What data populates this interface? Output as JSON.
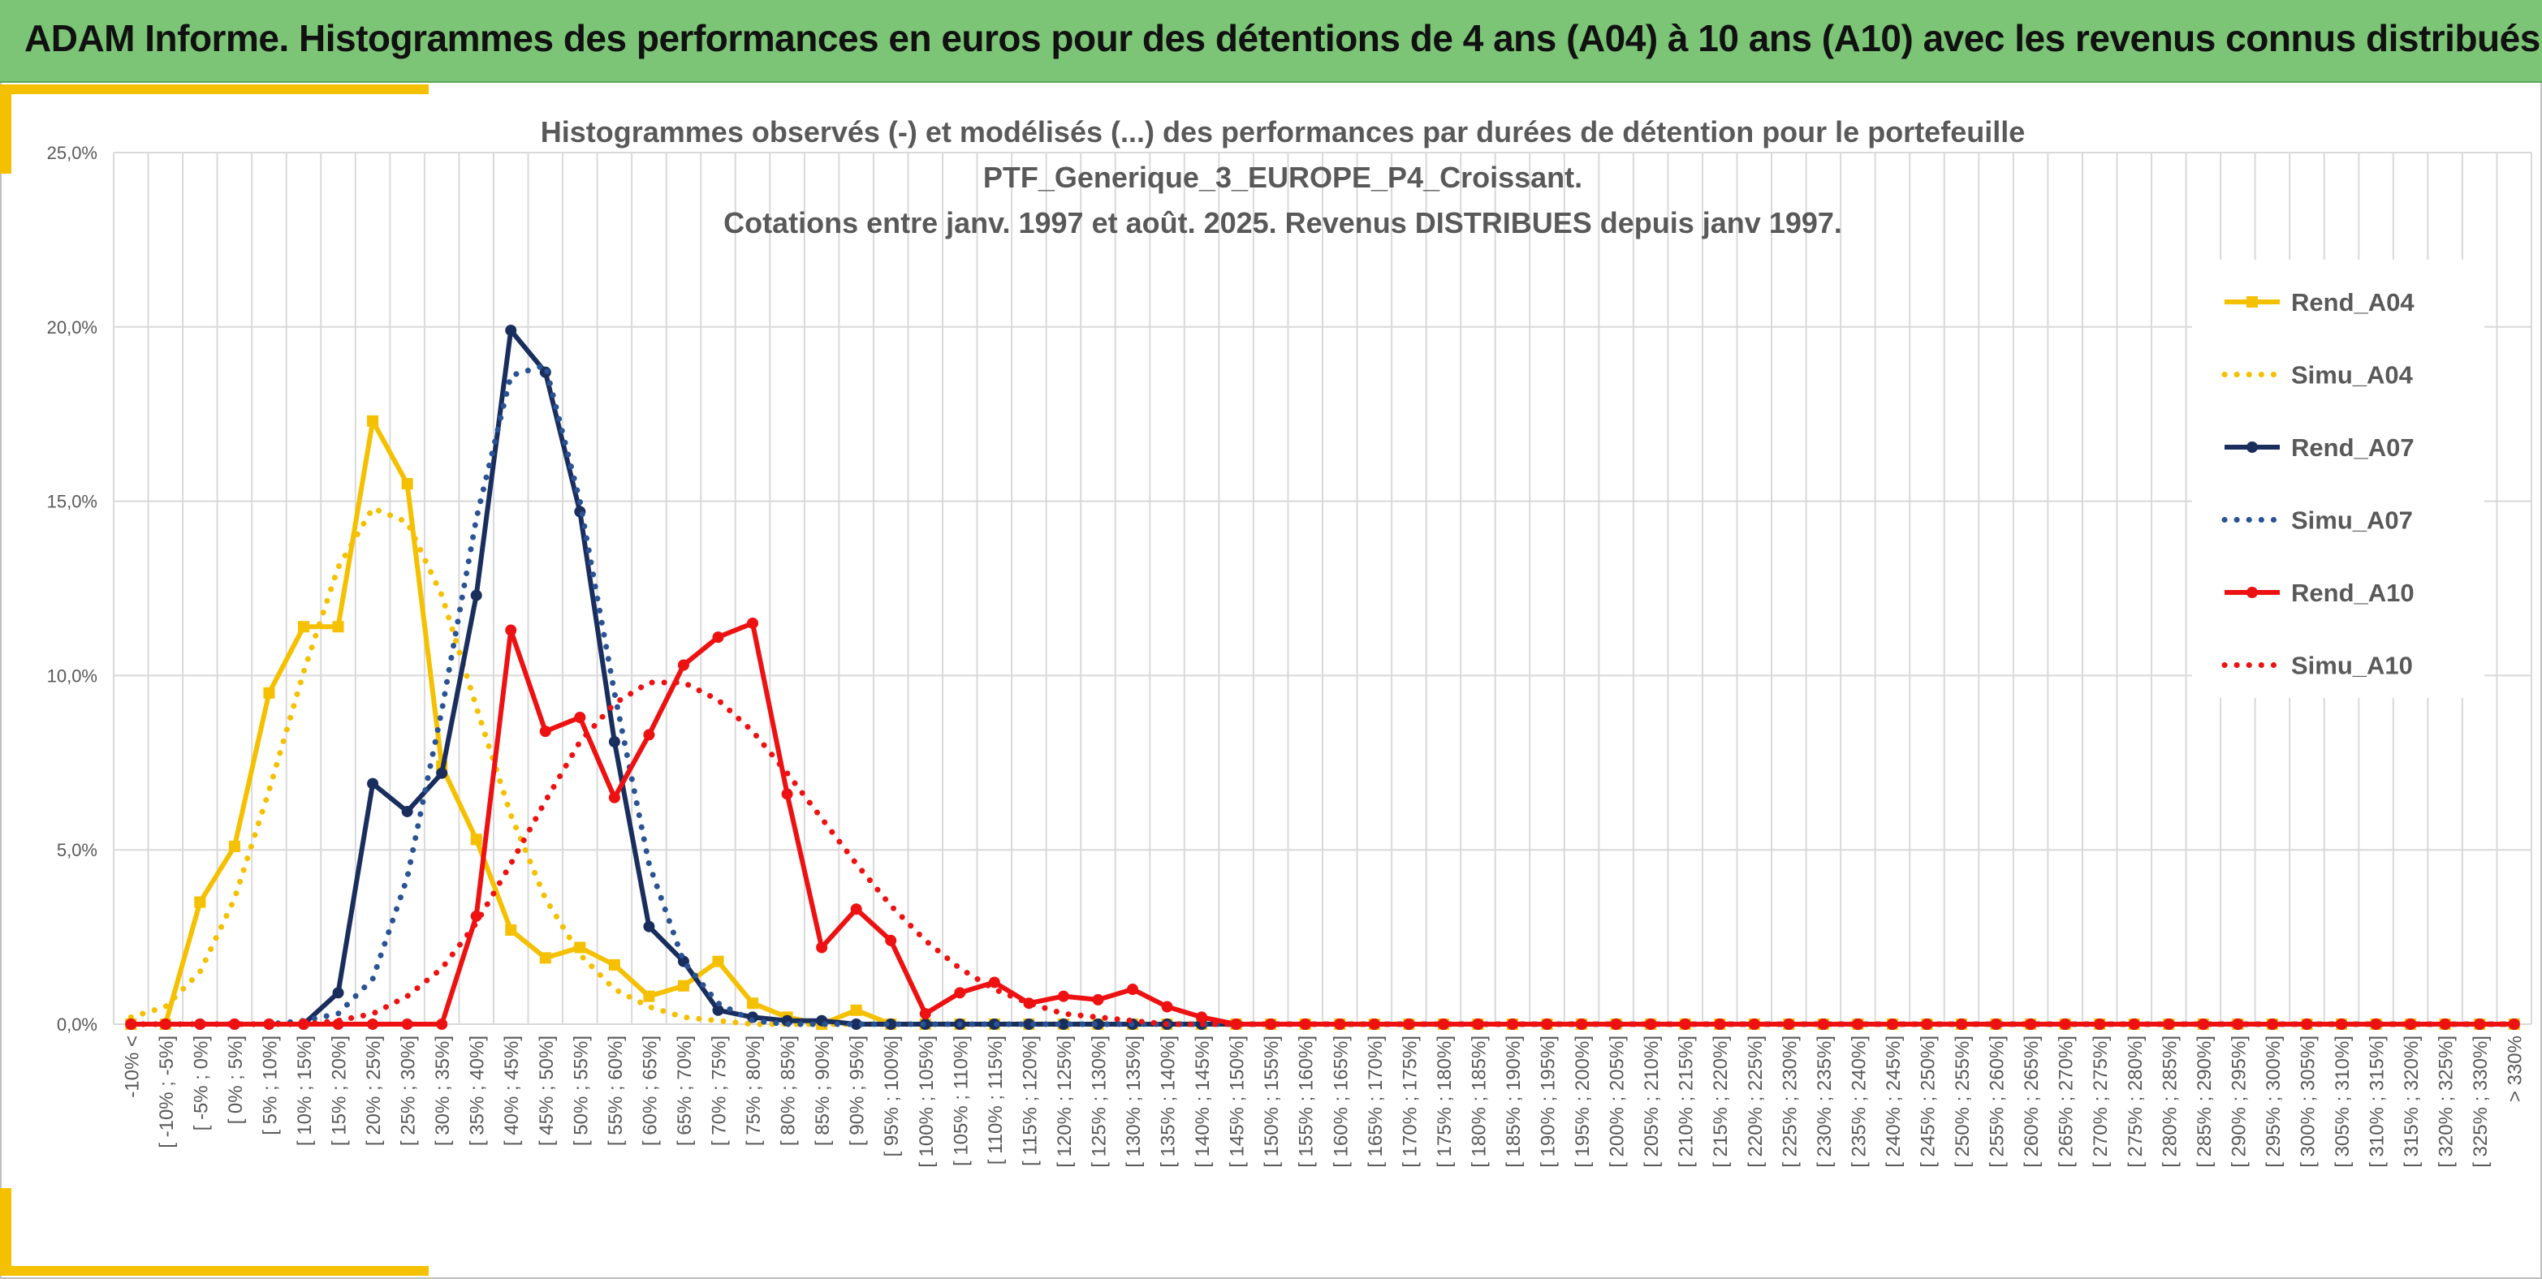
{
  "header": {
    "title": "ADAM Informe. Histogrammes des performances en euros pour des détentions de 4 ans (A04) à 10 ans (A10) avec les revenus connus distribués"
  },
  "colors": {
    "banner": "#7cc576",
    "accent": "#f5c000",
    "grid": "#d9d9d9",
    "text": "#595959"
  },
  "chart_data": {
    "type": "line",
    "title_lines": [
      "Histogrammes observés (-) et modélisés (...) des performances par durées de détention pour le portefeuille",
      "PTF_Generique_3_EUROPE_P4_Croissant.",
      "Cotations entre janv. 1997 et août. 2025. Revenus DISTRIBUES depuis janv 1997."
    ],
    "xlabel": "",
    "ylabel": "",
    "ylim": [
      0,
      25
    ],
    "y_ticks": [
      "0,0%",
      "5,0%",
      "10,0%",
      "15,0%",
      "20,0%",
      "25,0%"
    ],
    "grid": true,
    "legend_position": "right",
    "categories": [
      "-10% <",
      "[ -10% ; -5%]",
      "[ -5% ; 0%]",
      "[ 0% ; 5%]",
      "[ 5% ; 10%]",
      "[ 10% ; 15%]",
      "[ 15% ; 20%]",
      "[ 20% ; 25%]",
      "[ 25% ; 30%]",
      "[ 30% ; 35%]",
      "[ 35% ; 40%]",
      "[ 40% ; 45%]",
      "[ 45% ; 50%]",
      "[ 50% ; 55%]",
      "[ 55% ; 60%]",
      "[ 60% ; 65%]",
      "[ 65% ; 70%]",
      "[ 70% ; 75%]",
      "[ 75% ; 80%]",
      "[ 80% ; 85%]",
      "[ 85% ; 90%]",
      "[ 90% ; 95%]",
      "[ 95% ; 100%]",
      "[ 100% ; 105%]",
      "[ 105% ; 110%]",
      "[ 110% ; 115%]",
      "[ 115% ; 120%]",
      "[ 120% ; 125%]",
      "[ 125% ; 130%]",
      "[ 130% ; 135%]",
      "[ 135% ; 140%]",
      "[ 140% ; 145%]",
      "[ 145% ; 150%]",
      "[ 150% ; 155%]",
      "[ 155% ; 160%]",
      "[ 160% ; 165%]",
      "[ 165% ; 170%]",
      "[ 170% ; 175%]",
      "[ 175% ; 180%]",
      "[ 180% ; 185%]",
      "[ 185% ; 190%]",
      "[ 190% ; 195%]",
      "[ 195% ; 200%]",
      "[ 200% ; 205%]",
      "[ 205% ; 210%]",
      "[ 210% ; 215%]",
      "[ 215% ; 220%]",
      "[ 220% ; 225%]",
      "[ 225% ; 230%]",
      "[ 230% ; 235%]",
      "[ 235% ; 240%]",
      "[ 240% ; 245%]",
      "[ 245% ; 250%]",
      "[ 250% ; 255%]",
      "[ 255% ; 260%]",
      "[ 260% ; 265%]",
      "[ 265% ; 270%]",
      "[ 270% ; 275%]",
      "[ 275% ; 280%]",
      "[ 280% ; 285%]",
      "[ 285% ; 290%]",
      "[ 290% ; 295%]",
      "[ 295% ; 300%]",
      "[ 300% ; 305%]",
      "[ 305% ; 310%]",
      "[ 310% ; 315%]",
      "[ 315% ; 320%]",
      "[ 320% ; 325%]",
      "[ 325% ; 330%]",
      "> 330%"
    ],
    "series": [
      {
        "name": "Rend_A04",
        "color": "#f5c000",
        "style": "solid",
        "marker": "square",
        "values": [
          0,
          0,
          3.5,
          5.1,
          9.5,
          11.4,
          11.4,
          17.3,
          15.5,
          7.4,
          5.3,
          2.7,
          1.9,
          2.2,
          1.7,
          0.8,
          1.1,
          1.8,
          0.6,
          0.2,
          0,
          0.4,
          0,
          0,
          0,
          0,
          0,
          0,
          0,
          0,
          0,
          0,
          0,
          0,
          0,
          0,
          0,
          0,
          0,
          0,
          0,
          0,
          0,
          0,
          0,
          0,
          0,
          0,
          0,
          0,
          0,
          0,
          0,
          0,
          0,
          0,
          0,
          0,
          0,
          0,
          0,
          0,
          0,
          0,
          0,
          0,
          0,
          0,
          0,
          0
        ]
      },
      {
        "name": "Simu_A04",
        "color": "#f5c000",
        "style": "dotted",
        "values": [
          0.2,
          0.5,
          1.5,
          3.6,
          6.7,
          10.1,
          13.1,
          14.8,
          14.4,
          12.3,
          9.1,
          6.0,
          3.6,
          2.0,
          1.0,
          0.5,
          0.2,
          0.1,
          0,
          0,
          0,
          0,
          0,
          0,
          0,
          0,
          0,
          0,
          0,
          0,
          0,
          0,
          0,
          0,
          0,
          0,
          0,
          0,
          0,
          0,
          0,
          0,
          0,
          0,
          0,
          0,
          0,
          0,
          0,
          0,
          0,
          0,
          0,
          0,
          0,
          0,
          0,
          0,
          0,
          0,
          0,
          0,
          0,
          0,
          0,
          0,
          0,
          0,
          0,
          0
        ]
      },
      {
        "name": "Rend_A07",
        "color": "#1a2e5e",
        "style": "solid",
        "marker": "circle",
        "values": [
          0,
          0,
          0,
          0,
          0,
          0,
          0.9,
          6.9,
          6.1,
          7.2,
          12.3,
          19.9,
          18.7,
          14.7,
          8.1,
          2.8,
          1.8,
          0.4,
          0.2,
          0.1,
          0.1,
          0,
          0,
          0,
          0,
          0,
          0,
          0,
          0,
          0,
          0,
          0,
          0,
          0,
          0,
          0,
          0,
          0,
          0,
          0,
          0,
          0,
          0,
          0,
          0,
          0,
          0,
          0,
          0,
          0,
          0,
          0,
          0,
          0,
          0,
          0,
          0,
          0,
          0,
          0,
          0,
          0,
          0,
          0,
          0,
          0,
          0,
          0,
          0,
          0
        ]
      },
      {
        "name": "Simu_A07",
        "color": "#2a5394",
        "style": "dotted",
        "values": [
          0,
          0,
          0,
          0,
          0,
          0.1,
          0.3,
          1.3,
          4.2,
          9.0,
          14.5,
          18.6,
          18.9,
          15.0,
          9.5,
          4.6,
          1.8,
          0.6,
          0.1,
          0,
          0,
          0,
          0,
          0,
          0,
          0,
          0,
          0,
          0,
          0,
          0,
          0,
          0,
          0,
          0,
          0,
          0,
          0,
          0,
          0,
          0,
          0,
          0,
          0,
          0,
          0,
          0,
          0,
          0,
          0,
          0,
          0,
          0,
          0,
          0,
          0,
          0,
          0,
          0,
          0,
          0,
          0,
          0,
          0,
          0,
          0,
          0,
          0,
          0,
          0
        ]
      },
      {
        "name": "Rend_A10",
        "color": "#ee1111",
        "style": "solid",
        "marker": "circle",
        "values": [
          0,
          0,
          0,
          0,
          0,
          0,
          0,
          0,
          0,
          0,
          3.1,
          11.3,
          8.4,
          8.8,
          6.5,
          8.3,
          10.3,
          11.1,
          11.5,
          6.6,
          2.2,
          3.3,
          2.4,
          0.3,
          0.9,
          1.2,
          0.6,
          0.8,
          0.7,
          1.0,
          0.5,
          0.2,
          0,
          0,
          0,
          0,
          0,
          0,
          0,
          0,
          0,
          0,
          0,
          0,
          0,
          0,
          0,
          0,
          0,
          0,
          0,
          0,
          0,
          0,
          0,
          0,
          0,
          0,
          0,
          0,
          0,
          0,
          0,
          0,
          0,
          0,
          0,
          0,
          0,
          0
        ]
      },
      {
        "name": "Simu_A10",
        "color": "#ee1111",
        "style": "dotted",
        "values": [
          0,
          0,
          0,
          0,
          0,
          0,
          0.1,
          0.3,
          0.8,
          1.6,
          2.9,
          4.6,
          6.4,
          8.1,
          9.2,
          9.8,
          9.8,
          9.3,
          8.4,
          7.2,
          5.9,
          4.6,
          3.4,
          2.4,
          1.6,
          1.0,
          0.6,
          0.3,
          0.2,
          0.1,
          0,
          0,
          0,
          0,
          0,
          0,
          0,
          0,
          0,
          0,
          0,
          0,
          0,
          0,
          0,
          0,
          0,
          0,
          0,
          0,
          0,
          0,
          0,
          0,
          0,
          0,
          0,
          0,
          0,
          0,
          0,
          0,
          0,
          0,
          0,
          0,
          0,
          0,
          0,
          0
        ]
      }
    ]
  }
}
